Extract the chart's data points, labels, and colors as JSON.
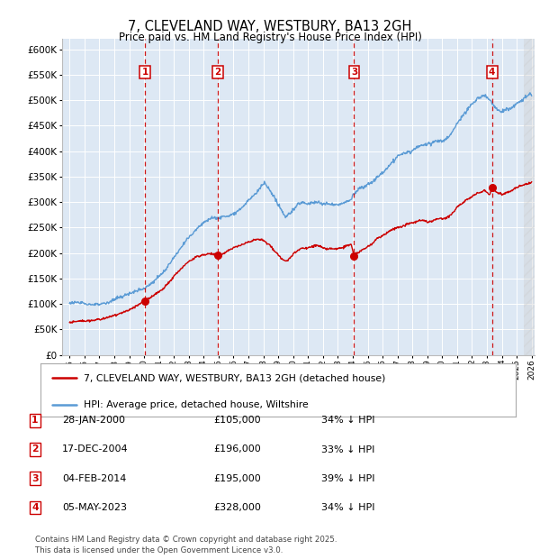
{
  "title": "7, CLEVELAND WAY, WESTBURY, BA13 2GH",
  "subtitle": "Price paid vs. HM Land Registry's House Price Index (HPI)",
  "ylim": [
    0,
    620000
  ],
  "yticks": [
    0,
    50000,
    100000,
    150000,
    200000,
    250000,
    300000,
    350000,
    400000,
    450000,
    500000,
    550000,
    600000
  ],
  "xlim_start": 1994.5,
  "xlim_end": 2026.2,
  "background_color": "#ffffff",
  "plot_bg_color": "#dde8f4",
  "grid_color": "#ffffff",
  "transaction_markers": [
    {
      "num": 1,
      "year": 2000.07,
      "value": 105000,
      "date": "28-JAN-2000",
      "pct": "34%"
    },
    {
      "num": 2,
      "year": 2004.96,
      "value": 196000,
      "date": "17-DEC-2004",
      "pct": "33%"
    },
    {
      "num": 3,
      "year": 2014.09,
      "value": 195000,
      "date": "04-FEB-2014",
      "pct": "39%"
    },
    {
      "num": 4,
      "year": 2023.34,
      "value": 328000,
      "date": "05-MAY-2023",
      "pct": "34%"
    }
  ],
  "dashed_line_color": "#cc0000",
  "marker_box_color": "#cc0000",
  "legend_line_red": "#cc0000",
  "legend_line_blue": "#5b9bd5",
  "legend_label_red": "7, CLEVELAND WAY, WESTBURY, BA13 2GH (detached house)",
  "legend_label_blue": "HPI: Average price, detached house, Wiltshire",
  "footer_text": "Contains HM Land Registry data © Crown copyright and database right 2025.\nThis data is licensed under the Open Government Licence v3.0.",
  "table_rows": [
    {
      "num": 1,
      "date": "28-JAN-2000",
      "price": "£105,000",
      "pct": "34% ↓ HPI"
    },
    {
      "num": 2,
      "date": "17-DEC-2004",
      "price": "£196,000",
      "pct": "33% ↓ HPI"
    },
    {
      "num": 3,
      "date": "04-FEB-2014",
      "price": "£195,000",
      "pct": "39% ↓ HPI"
    },
    {
      "num": 4,
      "date": "05-MAY-2023",
      "price": "£328,000",
      "pct": "34% ↓ HPI"
    }
  ],
  "hpi_anchors": [
    [
      1995.0,
      100000
    ],
    [
      1995.5,
      99000
    ],
    [
      1996.0,
      97000
    ],
    [
      1996.5,
      97500
    ],
    [
      1997.0,
      99000
    ],
    [
      1997.5,
      102000
    ],
    [
      1998.0,
      108000
    ],
    [
      1998.5,
      112000
    ],
    [
      1999.0,
      118000
    ],
    [
      1999.5,
      126000
    ],
    [
      2000.0,
      130000
    ],
    [
      2000.5,
      140000
    ],
    [
      2001.0,
      152000
    ],
    [
      2001.5,
      168000
    ],
    [
      2002.0,
      190000
    ],
    [
      2002.5,
      210000
    ],
    [
      2003.0,
      230000
    ],
    [
      2003.5,
      248000
    ],
    [
      2004.0,
      262000
    ],
    [
      2004.5,
      272000
    ],
    [
      2005.0,
      274000
    ],
    [
      2005.5,
      276000
    ],
    [
      2006.0,
      280000
    ],
    [
      2006.5,
      290000
    ],
    [
      2007.0,
      305000
    ],
    [
      2007.5,
      318000
    ],
    [
      2007.9,
      335000
    ],
    [
      2008.1,
      340000
    ],
    [
      2008.5,
      320000
    ],
    [
      2008.8,
      305000
    ],
    [
      2009.0,
      295000
    ],
    [
      2009.3,
      278000
    ],
    [
      2009.5,
      272000
    ],
    [
      2009.8,
      278000
    ],
    [
      2010.0,
      285000
    ],
    [
      2010.3,
      295000
    ],
    [
      2010.6,
      300000
    ],
    [
      2010.9,
      298000
    ],
    [
      2011.0,
      298000
    ],
    [
      2011.3,
      300000
    ],
    [
      2011.6,
      302000
    ],
    [
      2011.9,
      300000
    ],
    [
      2012.0,
      298000
    ],
    [
      2012.5,
      296000
    ],
    [
      2013.0,
      296000
    ],
    [
      2013.3,
      298000
    ],
    [
      2013.6,
      302000
    ],
    [
      2013.9,
      308000
    ],
    [
      2014.0,
      315000
    ],
    [
      2014.3,
      322000
    ],
    [
      2014.5,
      328000
    ],
    [
      2014.8,
      330000
    ],
    [
      2015.0,
      335000
    ],
    [
      2015.3,
      340000
    ],
    [
      2015.6,
      348000
    ],
    [
      2015.9,
      355000
    ],
    [
      2016.0,
      358000
    ],
    [
      2016.3,
      368000
    ],
    [
      2016.6,
      378000
    ],
    [
      2016.9,
      385000
    ],
    [
      2017.0,
      390000
    ],
    [
      2017.3,
      395000
    ],
    [
      2017.6,
      398000
    ],
    [
      2017.9,
      400000
    ],
    [
      2018.0,
      402000
    ],
    [
      2018.3,
      408000
    ],
    [
      2018.6,
      412000
    ],
    [
      2018.9,
      415000
    ],
    [
      2019.0,
      415000
    ],
    [
      2019.3,
      418000
    ],
    [
      2019.6,
      420000
    ],
    [
      2019.9,
      422000
    ],
    [
      2020.0,
      420000
    ],
    [
      2020.3,
      425000
    ],
    [
      2020.6,
      435000
    ],
    [
      2020.9,
      450000
    ],
    [
      2021.0,
      455000
    ],
    [
      2021.3,
      468000
    ],
    [
      2021.6,
      478000
    ],
    [
      2021.9,
      488000
    ],
    [
      2022.0,
      492000
    ],
    [
      2022.3,
      500000
    ],
    [
      2022.6,
      505000
    ],
    [
      2022.8,
      510000
    ],
    [
      2023.0,
      505000
    ],
    [
      2023.2,
      500000
    ],
    [
      2023.4,
      490000
    ],
    [
      2023.6,
      482000
    ],
    [
      2023.8,
      478000
    ],
    [
      2024.0,
      475000
    ],
    [
      2024.3,
      478000
    ],
    [
      2024.6,
      482000
    ],
    [
      2024.9,
      488000
    ],
    [
      2025.0,
      492000
    ],
    [
      2025.3,
      498000
    ],
    [
      2025.6,
      505000
    ],
    [
      2025.9,
      510000
    ],
    [
      2026.0,
      508000
    ]
  ],
  "red_anchors": [
    [
      1995.0,
      65000
    ],
    [
      1995.5,
      66000
    ],
    [
      1996.0,
      67000
    ],
    [
      1996.5,
      68000
    ],
    [
      1997.0,
      70000
    ],
    [
      1997.5,
      73000
    ],
    [
      1998.0,
      77000
    ],
    [
      1998.5,
      82000
    ],
    [
      1999.0,
      87000
    ],
    [
      1999.5,
      95000
    ],
    [
      2000.07,
      105000
    ],
    [
      2000.5,
      112000
    ],
    [
      2001.0,
      122000
    ],
    [
      2001.5,
      135000
    ],
    [
      2002.0,
      152000
    ],
    [
      2002.5,
      168000
    ],
    [
      2003.0,
      182000
    ],
    [
      2003.5,
      192000
    ],
    [
      2004.0,
      196000
    ],
    [
      2004.5,
      198000
    ],
    [
      2004.96,
      196000
    ],
    [
      2005.0,
      196000
    ],
    [
      2005.3,
      198000
    ],
    [
      2005.6,
      205000
    ],
    [
      2005.9,
      210000
    ],
    [
      2006.3,
      215000
    ],
    [
      2006.6,
      218000
    ],
    [
      2007.0,
      222000
    ],
    [
      2007.5,
      228000
    ],
    [
      2007.9,
      228000
    ],
    [
      2008.1,
      225000
    ],
    [
      2008.5,
      215000
    ],
    [
      2008.8,
      205000
    ],
    [
      2009.0,
      198000
    ],
    [
      2009.3,
      188000
    ],
    [
      2009.5,
      185000
    ],
    [
      2009.8,
      190000
    ],
    [
      2010.0,
      198000
    ],
    [
      2010.3,
      205000
    ],
    [
      2010.6,
      210000
    ],
    [
      2010.9,
      208000
    ],
    [
      2011.0,
      210000
    ],
    [
      2011.3,
      212000
    ],
    [
      2011.6,
      215000
    ],
    [
      2011.9,
      212000
    ],
    [
      2012.0,
      210000
    ],
    [
      2012.5,
      208000
    ],
    [
      2013.0,
      208000
    ],
    [
      2013.3,
      210000
    ],
    [
      2013.6,
      215000
    ],
    [
      2013.9,
      218000
    ],
    [
      2014.09,
      195000
    ],
    [
      2014.2,
      200000
    ],
    [
      2014.5,
      205000
    ],
    [
      2014.8,
      210000
    ],
    [
      2015.0,
      215000
    ],
    [
      2015.3,
      220000
    ],
    [
      2015.6,
      228000
    ],
    [
      2015.9,
      232000
    ],
    [
      2016.0,
      235000
    ],
    [
      2016.3,
      240000
    ],
    [
      2016.6,
      245000
    ],
    [
      2016.9,
      248000
    ],
    [
      2017.0,
      250000
    ],
    [
      2017.3,
      252000
    ],
    [
      2017.6,
      255000
    ],
    [
      2017.9,
      258000
    ],
    [
      2018.0,
      258000
    ],
    [
      2018.3,
      262000
    ],
    [
      2018.6,
      265000
    ],
    [
      2018.9,
      262000
    ],
    [
      2019.0,
      260000
    ],
    [
      2019.3,
      262000
    ],
    [
      2019.6,
      265000
    ],
    [
      2019.9,
      268000
    ],
    [
      2020.0,
      265000
    ],
    [
      2020.3,
      268000
    ],
    [
      2020.6,
      275000
    ],
    [
      2020.9,
      285000
    ],
    [
      2021.0,
      290000
    ],
    [
      2021.3,
      298000
    ],
    [
      2021.6,
      305000
    ],
    [
      2021.9,
      310000
    ],
    [
      2022.0,
      312000
    ],
    [
      2022.3,
      318000
    ],
    [
      2022.6,
      322000
    ],
    [
      2022.8,
      326000
    ],
    [
      2023.0,
      322000
    ],
    [
      2023.1,
      318000
    ],
    [
      2023.2,
      315000
    ],
    [
      2023.34,
      328000
    ],
    [
      2023.5,
      325000
    ],
    [
      2023.7,
      320000
    ],
    [
      2023.9,
      318000
    ],
    [
      2024.0,
      315000
    ],
    [
      2024.3,
      318000
    ],
    [
      2024.6,
      322000
    ],
    [
      2024.9,
      328000
    ],
    [
      2025.0,
      330000
    ],
    [
      2025.5,
      335000
    ],
    [
      2026.0,
      338000
    ]
  ]
}
